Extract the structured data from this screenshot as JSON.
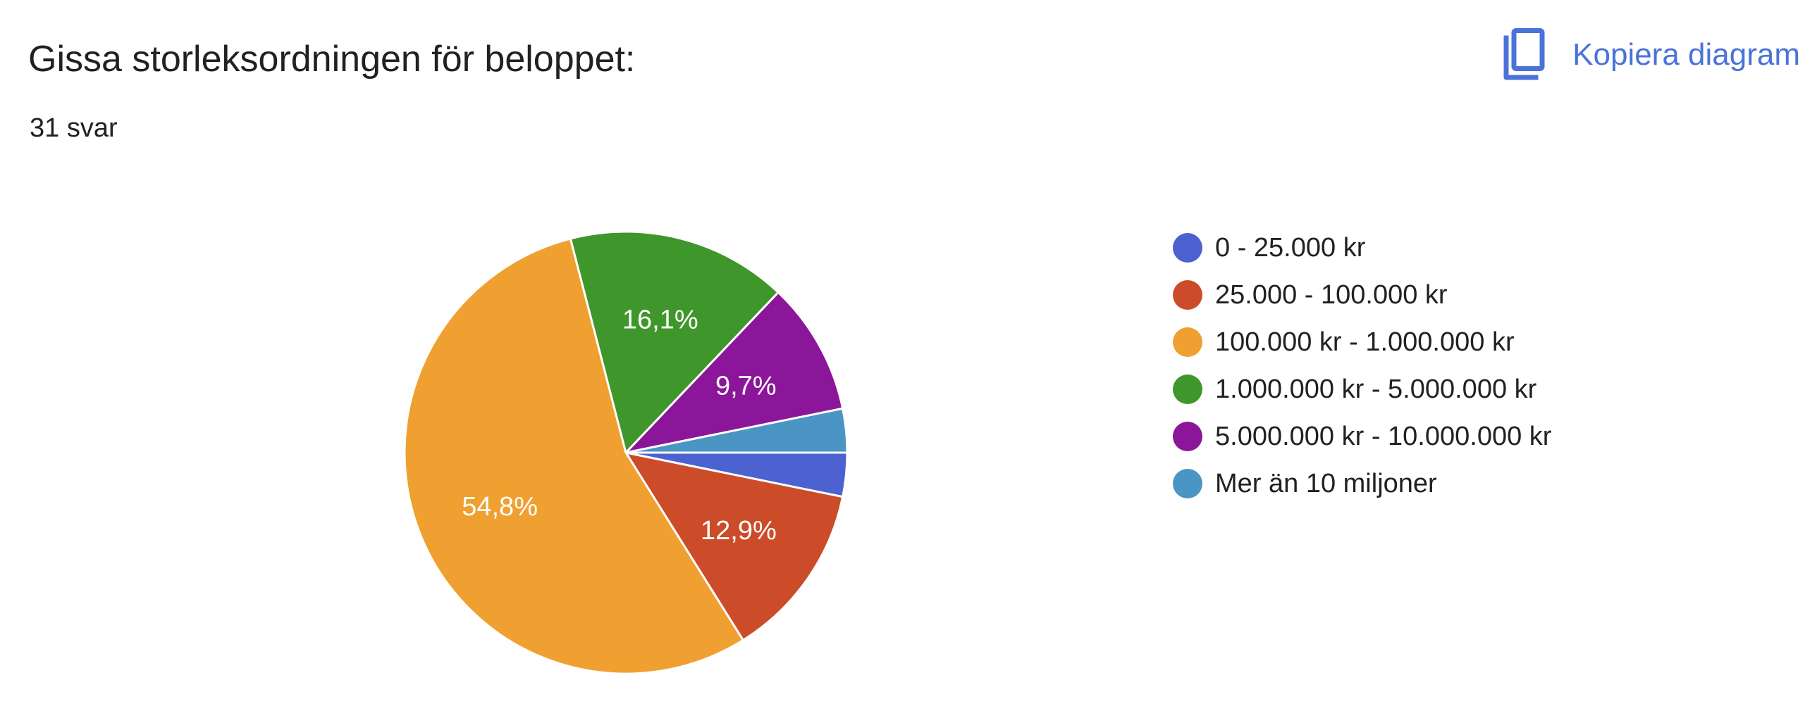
{
  "header": {
    "title": "Gissa storleksordningen för beloppet:",
    "response_count": "31 svar",
    "copy_label": "Kopiera diagram",
    "copy_icon": "copy-icon",
    "accent_color": "#4a73d9"
  },
  "chart_data": {
    "type": "pie",
    "legend_position": "right",
    "slices": [
      {
        "label": "0 - 25.000 kr",
        "value": 3.2,
        "count": 1,
        "color": "#4c62d0",
        "display": ""
      },
      {
        "label": "25.000 - 100.000 kr",
        "value": 12.9,
        "count": 4,
        "color": "#cc4b28",
        "display": "12,9%"
      },
      {
        "label": "100.000 kr - 1.000.000 kr",
        "value": 54.8,
        "count": 17,
        "color": "#efa030",
        "display": "54,8%"
      },
      {
        "label": "1.000.000 kr - 5.000.000 kr",
        "value": 16.1,
        "count": 5,
        "color": "#3f962b",
        "display": "16,1%"
      },
      {
        "label": "5.000.000 kr - 10.000.000 kr",
        "value": 9.7,
        "count": 3,
        "color": "#8c169a",
        "display": "9,7%"
      },
      {
        "label": "Mer än 10 miljoner",
        "value": 3.2,
        "count": 1,
        "color": "#4a95c4",
        "display": ""
      }
    ]
  }
}
